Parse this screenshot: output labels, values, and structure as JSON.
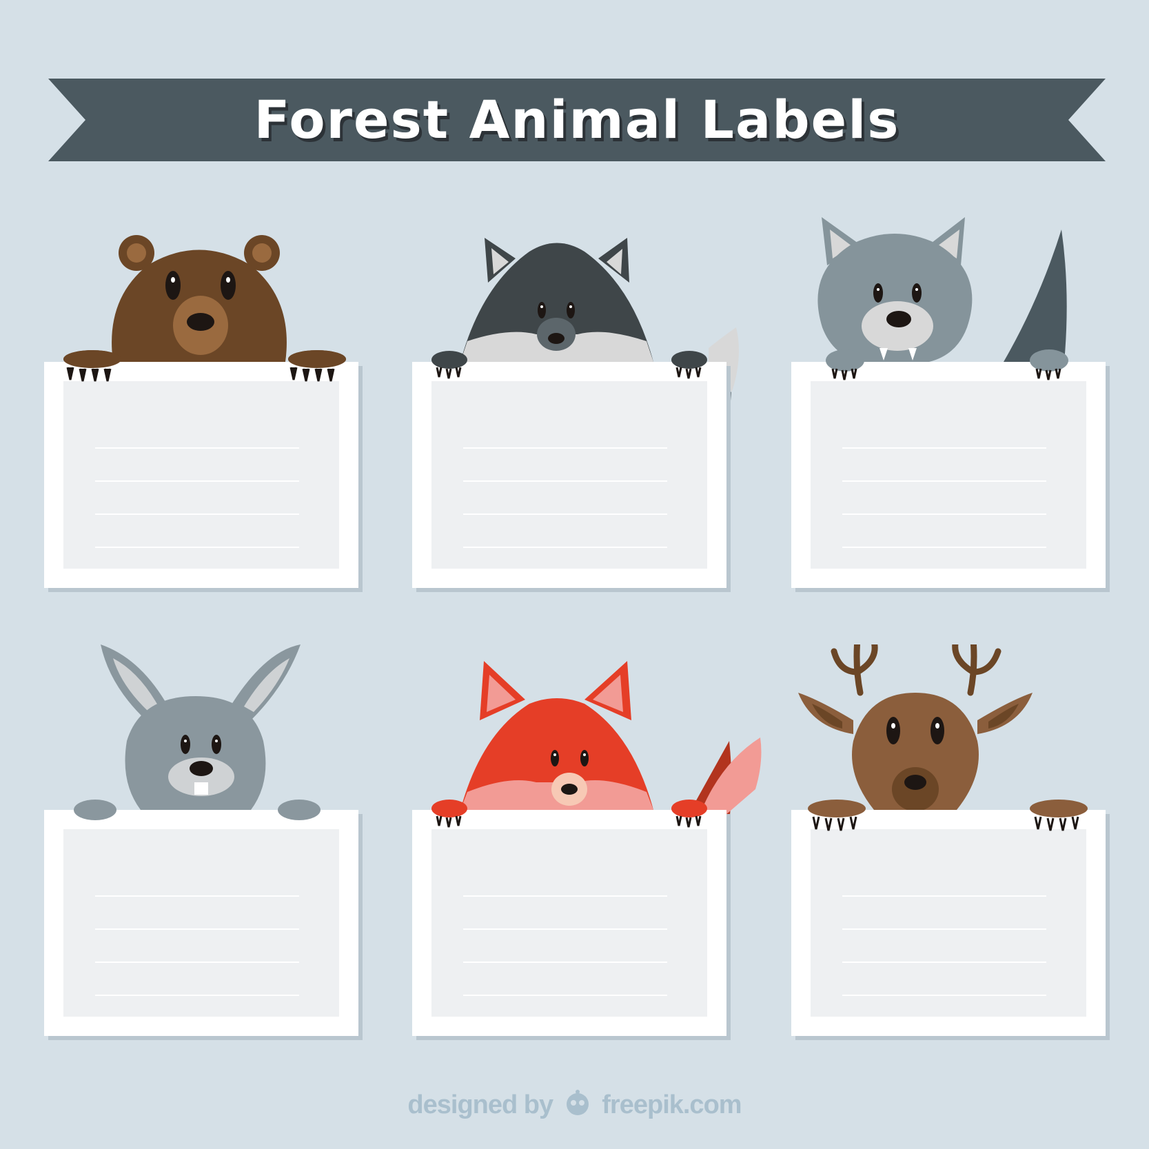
{
  "title": "Forest Animal Labels",
  "credit": {
    "prefix": "designed by",
    "brand": "freepik.com"
  },
  "labels": [
    {
      "animal": "bear"
    },
    {
      "animal": "wolf-dark"
    },
    {
      "animal": "wolf-gray"
    },
    {
      "animal": "rabbit"
    },
    {
      "animal": "fox"
    },
    {
      "animal": "deer"
    }
  ],
  "colors": {
    "background": "#d5e0e7",
    "banner": "#4b5960",
    "card": "#ffffff",
    "card_inner": "#eef0f2",
    "bear": "#6b4626",
    "fox": "#e53e27",
    "deer": "#8b5e3c",
    "wolf_gray": "#85949b",
    "wolf_dark": "#3f4649",
    "rabbit": "#8a979e"
  }
}
